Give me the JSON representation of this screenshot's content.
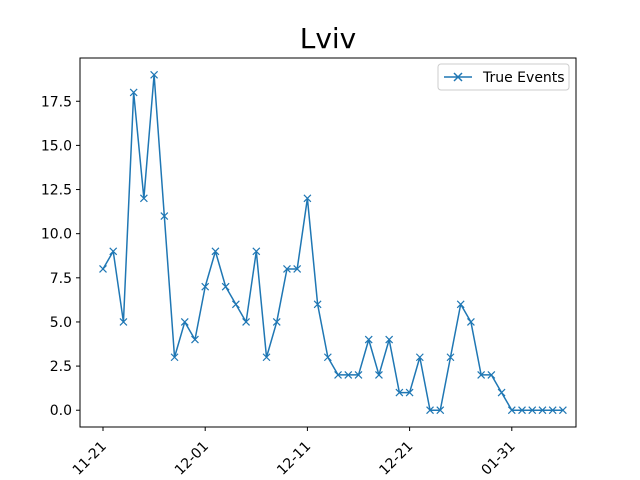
{
  "chart_data": {
    "type": "line",
    "title": "Lviv",
    "xlabel": "",
    "ylabel": "",
    "x_tick_labels": [
      "11-21",
      "12-01",
      "12-11",
      "12-21",
      "01-31"
    ],
    "y_tick_labels": [
      "0.0",
      "2.5",
      "5.0",
      "7.5",
      "10.0",
      "12.5",
      "15.0",
      "17.5"
    ],
    "ylim": [
      -0.95,
      19.95
    ],
    "legend": {
      "position": "top-right"
    },
    "series": [
      {
        "name": "True Events",
        "color": "#1f77b4",
        "marker": "x",
        "values": [
          8,
          9,
          5,
          18,
          12,
          19,
          11,
          3,
          5,
          4,
          7,
          9,
          7,
          6,
          5,
          9,
          3,
          5,
          8,
          8,
          12,
          6,
          3,
          2,
          2,
          2,
          4,
          2,
          4,
          1,
          1,
          3,
          0,
          0,
          3,
          6,
          5,
          2,
          2,
          1,
          0,
          0,
          0,
          0,
          0,
          0
        ]
      }
    ]
  }
}
